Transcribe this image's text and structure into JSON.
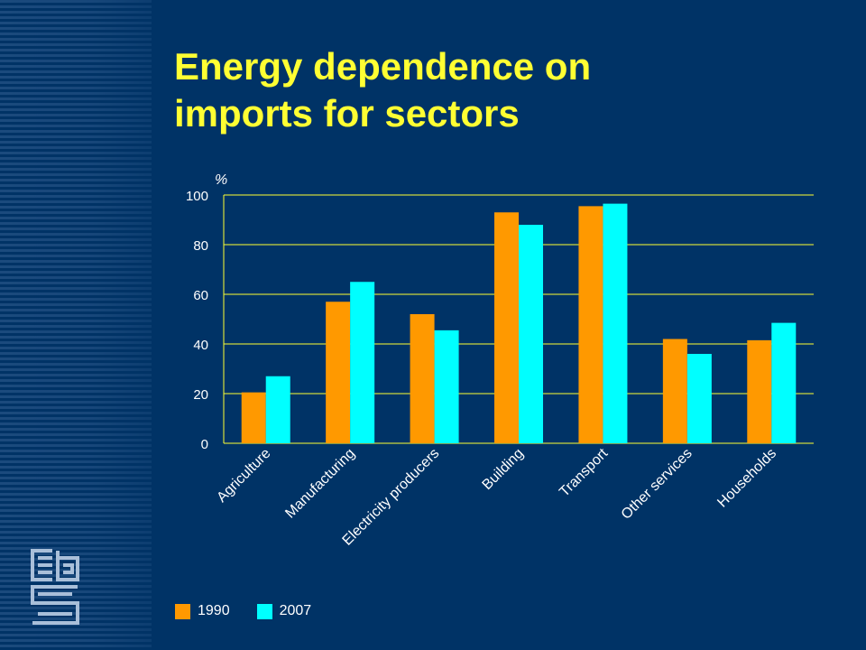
{
  "colors": {
    "background": "#003366",
    "title": "#ffff33",
    "series_1990": "#ff9900",
    "series_2007": "#00ffff",
    "text": "#ffffff",
    "gridline": "#ffff33"
  },
  "logo": {
    "icon": "cbs-logo-icon"
  },
  "chart_data": {
    "type": "bar",
    "title": "Energy dependence on imports for sectors",
    "title_lines": [
      "Energy dependence on",
      "imports for sectors"
    ],
    "ylabel": "%",
    "xlabel": "",
    "ylim": [
      0,
      100
    ],
    "yticks": [
      0,
      20,
      40,
      60,
      80,
      100
    ],
    "grid": true,
    "legend_position": "bottom-left",
    "categories": [
      "Agriculture",
      "Manufacturing",
      "Electricity producers",
      "Building",
      "Transport",
      "Other services",
      "Households"
    ],
    "series": [
      {
        "name": "1990",
        "color": "#ff9900",
        "values": [
          20.5,
          57,
          52,
          93,
          95.5,
          42,
          41.5
        ]
      },
      {
        "name": "2007",
        "color": "#00ffff",
        "values": [
          27,
          65,
          45.5,
          88,
          96.5,
          36,
          48.5
        ]
      }
    ]
  }
}
